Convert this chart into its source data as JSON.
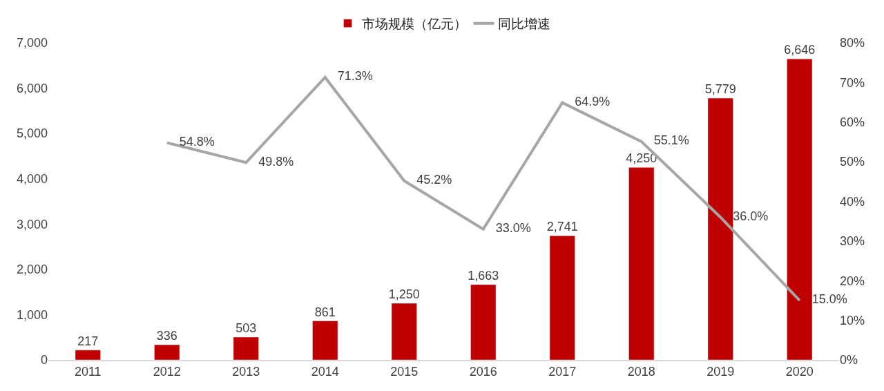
{
  "chart_data": {
    "type": "bar",
    "categories": [
      "2011",
      "2012",
      "2013",
      "2014",
      "2015",
      "2016",
      "2017",
      "2018",
      "2019",
      "2020"
    ],
    "series": [
      {
        "name": "市场规模（亿元）",
        "color": "#c00000",
        "values": [
          217,
          336,
          503,
          861,
          1250,
          1663,
          2741,
          4250,
          5779,
          6646
        ],
        "value_labels": [
          "217",
          "336",
          "503",
          "861",
          "1,250",
          "1,663",
          "2,741",
          "4,250",
          "5,779",
          "6,646"
        ]
      },
      {
        "name": "同比增速",
        "type": "line",
        "axis": "y2",
        "color": "#a6a6a6",
        "values": [
          null,
          54.8,
          49.8,
          71.3,
          45.2,
          33.0,
          64.9,
          55.1,
          36.0,
          15.0
        ],
        "value_labels": [
          null,
          "54.8%",
          "49.8%",
          "71.3%",
          "45.2%",
          "33.0%",
          "64.9%",
          "55.1%",
          "36.0%",
          "15.0%"
        ]
      }
    ],
    "ylim": [
      0,
      7000
    ],
    "yticks": [
      0,
      {
        "value": 1000,
        "label": "1,000"
      },
      {
        "value": 2000,
        "label": "2,000"
      },
      {
        "value": 3000,
        "label": "3,000"
      },
      {
        "value": 4000,
        "label": "4,000"
      },
      {
        "value": 5000,
        "label": "5,000"
      },
      {
        "value": 6000,
        "label": "6,000"
      },
      {
        "value": 7000,
        "label": "7,000"
      }
    ],
    "y2lim": [
      0,
      80
    ],
    "y2ticks": [
      {
        "value": 0,
        "label": "0%"
      },
      {
        "value": 10,
        "label": "10%"
      },
      {
        "value": 20,
        "label": "20%"
      },
      {
        "value": 30,
        "label": "30%"
      },
      {
        "value": 40,
        "label": "40%"
      },
      {
        "value": 50,
        "label": "50%"
      },
      {
        "value": 60,
        "label": "60%"
      },
      {
        "value": 70,
        "label": "70%"
      },
      {
        "value": 80,
        "label": "80%"
      }
    ],
    "legend": "top",
    "marker": "none",
    "line_style": "solid"
  }
}
